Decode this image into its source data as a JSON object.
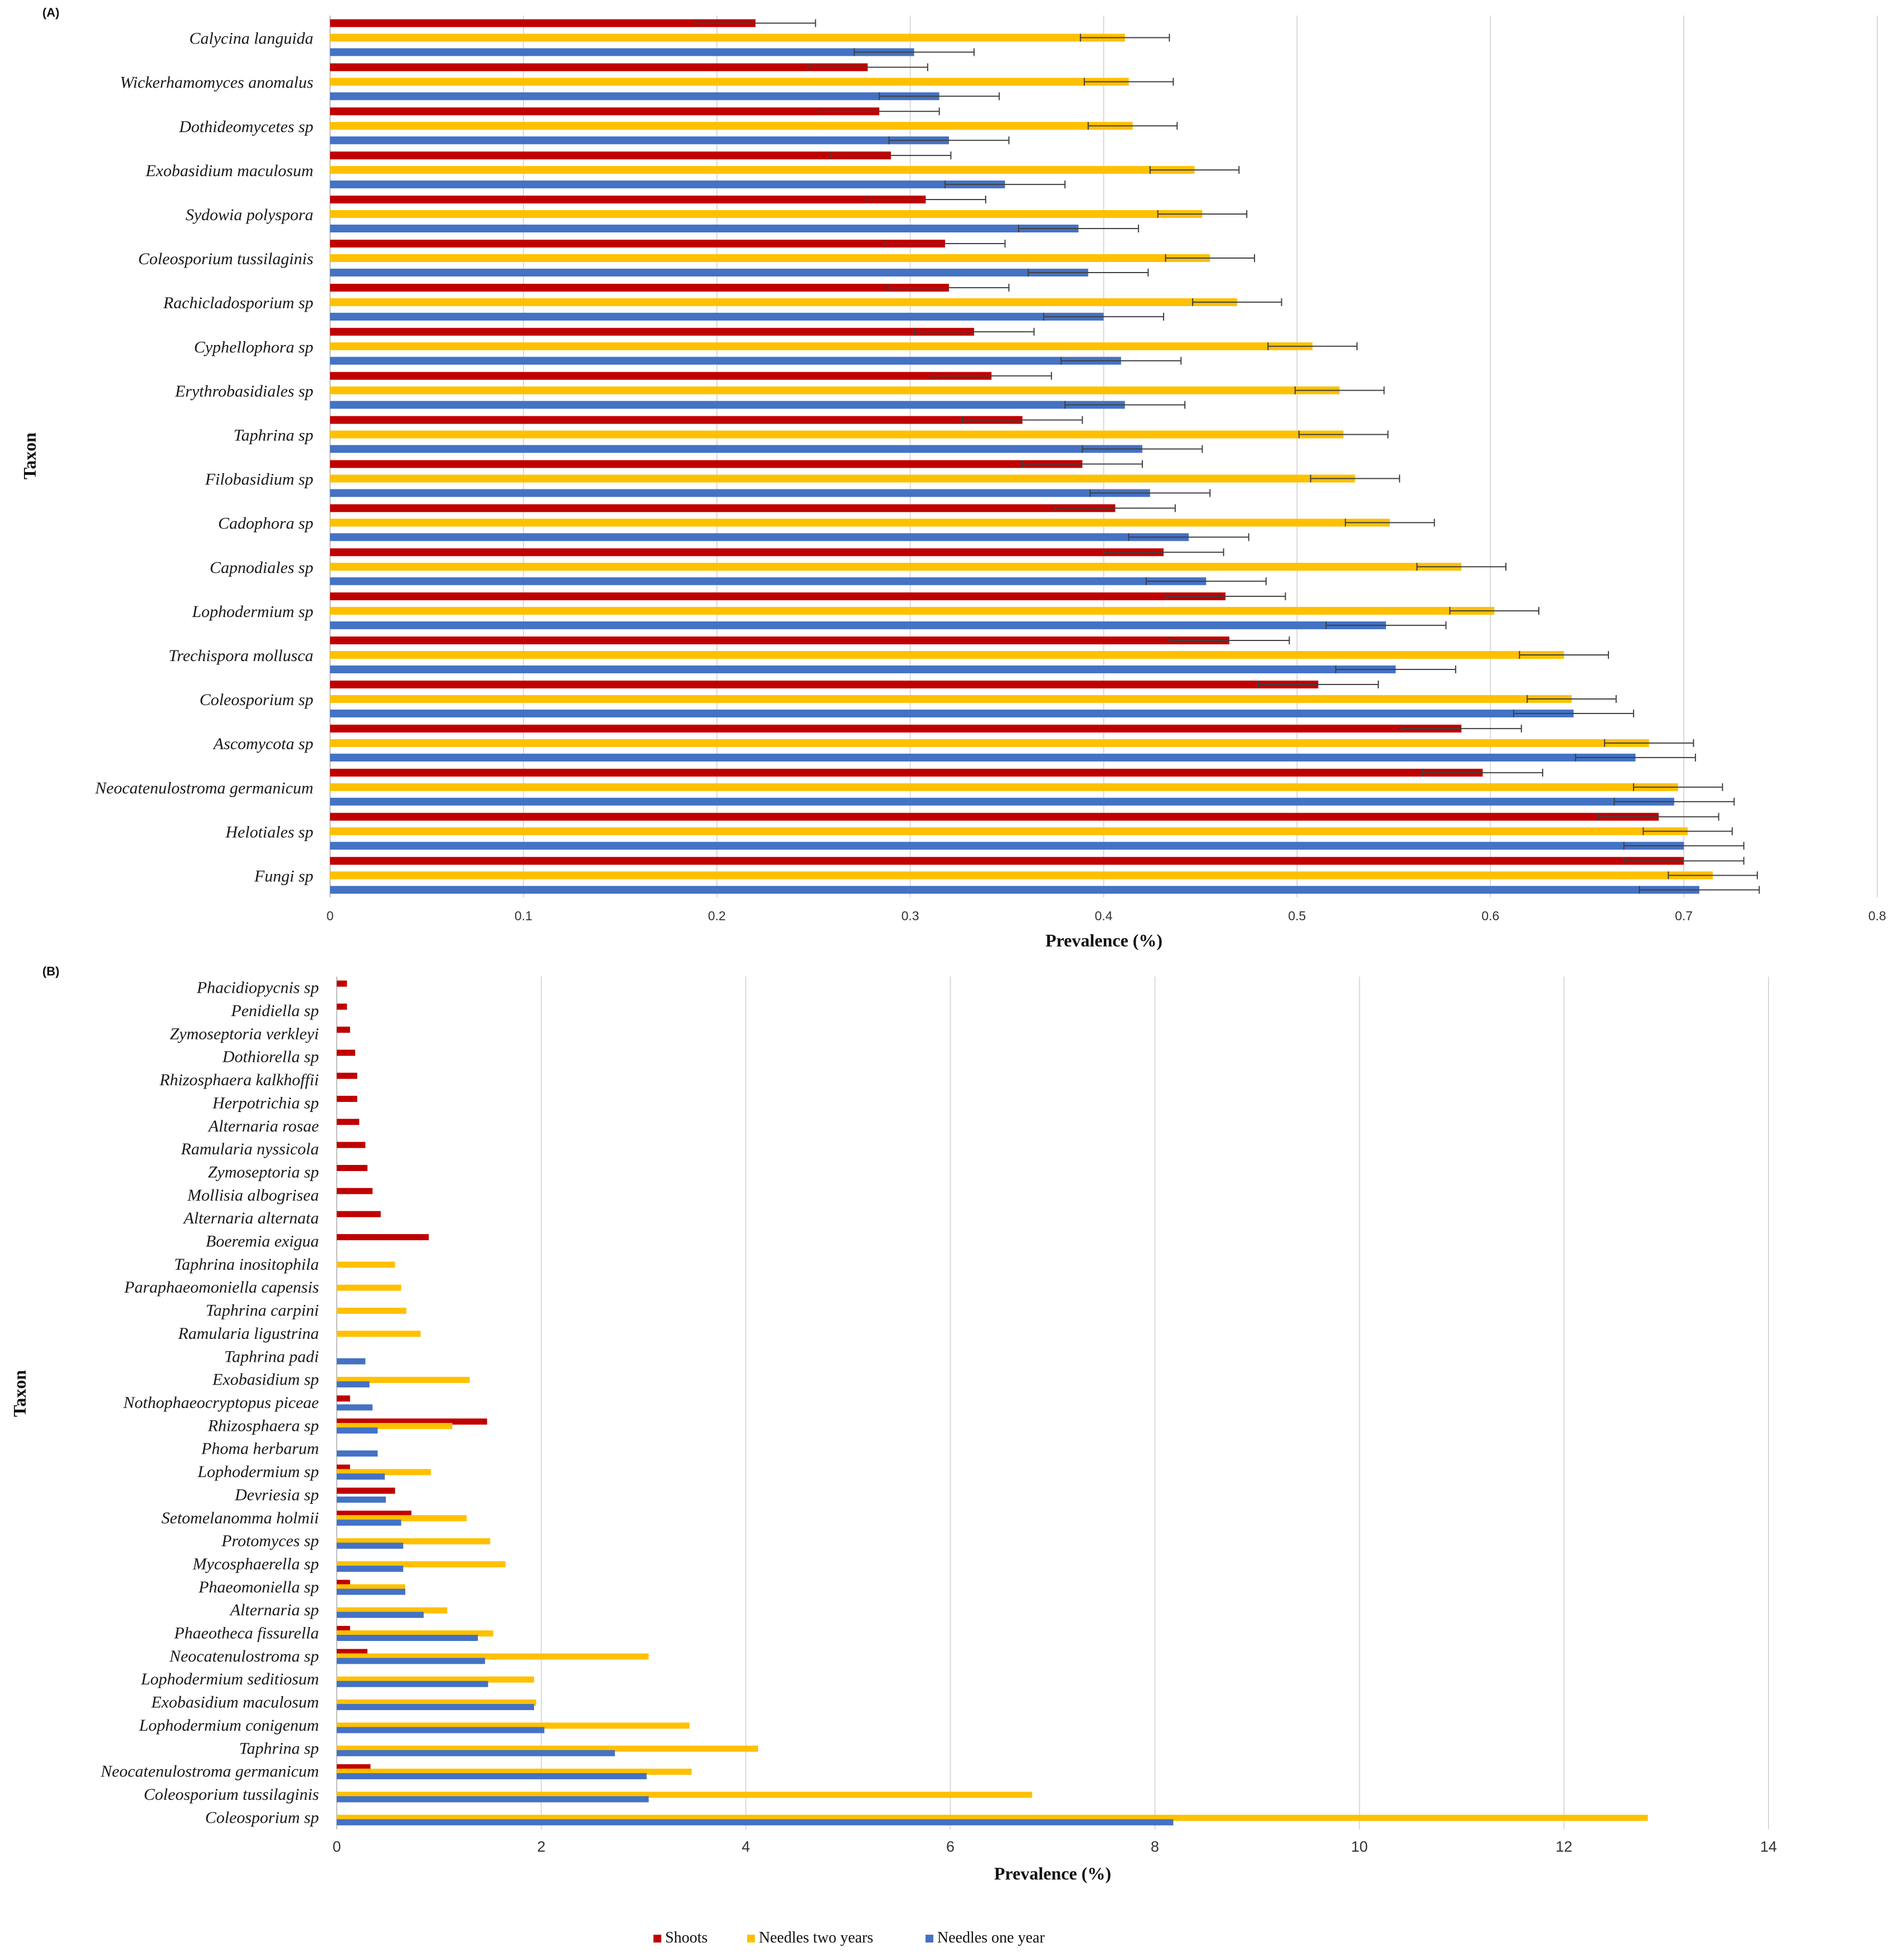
{
  "colors": {
    "shoots": "#c00000",
    "needles_two_years": "#ffc000",
    "needles_one_year": "#4472c4",
    "grid": "#d9d9d9",
    "errorbar": "#404040"
  },
  "legend": {
    "shoots": "Shoots",
    "needles_two_years": "Needles two years",
    "needles_one_year": "Needles one year"
  },
  "chart_data": [
    {
      "panel": "(A)",
      "type": "bar",
      "orientation": "horizontal",
      "xlabel": "Prevalence (%)",
      "ylabel": "Taxon",
      "xlim": [
        0,
        0.8
      ],
      "xticks": [
        "0",
        "0.1",
        "0.2",
        "0.3",
        "0.4",
        "0.5",
        "0.6",
        "0.7",
        "0.8"
      ],
      "grid": true,
      "error_bars": true,
      "categories": [
        "Calycina languida",
        "Wickerhamomyces anomalus",
        "Dothideomycetes sp",
        "Exobasidium maculosum",
        "Sydowia polyspora",
        "Coleosporium tussilaginis",
        "Rachicladosporium sp",
        "Cyphellophora sp",
        "Erythrobasidiales sp",
        "Taphrina sp",
        "Filobasidium sp",
        "Cadophora sp",
        "Capnodiales sp",
        "Lophodermium sp",
        "Trechispora mollusca",
        "Coleosporium sp",
        "Ascomycota sp",
        "Neocatenulostroma germanicum",
        "Helotiales sp",
        "Fungi sp"
      ],
      "series": [
        {
          "name": "Shoots",
          "values": [
            0.22,
            0.278,
            0.284,
            0.29,
            0.308,
            0.318,
            0.32,
            0.333,
            0.342,
            0.358,
            0.389,
            0.406,
            0.431,
            0.463,
            0.465,
            0.511,
            0.585,
            0.596,
            0.687,
            0.7
          ],
          "errors": [
            0.031,
            0.031,
            0.031,
            0.031,
            0.031,
            0.031,
            0.031,
            0.031,
            0.031,
            0.031,
            0.031,
            0.031,
            0.031,
            0.031,
            0.031,
            0.031,
            0.031,
            0.031,
            0.031,
            0.031
          ]
        },
        {
          "name": "Needles two years",
          "values": [
            0.411,
            0.413,
            0.415,
            0.447,
            0.451,
            0.455,
            0.469,
            0.508,
            0.522,
            0.524,
            0.53,
            0.548,
            0.585,
            0.602,
            0.638,
            0.642,
            0.682,
            0.697,
            0.702,
            0.715
          ],
          "errors": [
            0.023,
            0.023,
            0.023,
            0.023,
            0.023,
            0.023,
            0.023,
            0.023,
            0.023,
            0.023,
            0.023,
            0.023,
            0.023,
            0.023,
            0.023,
            0.023,
            0.023,
            0.023,
            0.023,
            0.023
          ]
        },
        {
          "name": "Needles one year",
          "values": [
            0.302,
            0.315,
            0.32,
            0.349,
            0.387,
            0.392,
            0.4,
            0.409,
            0.411,
            0.42,
            0.424,
            0.444,
            0.453,
            0.546,
            0.551,
            0.643,
            0.675,
            0.695,
            0.7,
            0.708
          ],
          "errors": [
            0.031,
            0.031,
            0.031,
            0.031,
            0.031,
            0.031,
            0.031,
            0.031,
            0.031,
            0.031,
            0.031,
            0.031,
            0.031,
            0.031,
            0.031,
            0.031,
            0.031,
            0.031,
            0.031,
            0.031
          ]
        }
      ]
    },
    {
      "panel": "(B)",
      "type": "bar",
      "orientation": "horizontal",
      "xlabel": "Prevalence (%)",
      "ylabel": "Taxon",
      "xlim": [
        0,
        14
      ],
      "xticks": [
        "0",
        "2",
        "4",
        "6",
        "8",
        "10",
        "12",
        "14"
      ],
      "grid": true,
      "error_bars": false,
      "categories": [
        "Phacidiopycnis sp",
        "Penidiella sp",
        "Zymoseptoria verkleyi",
        "Dothiorella sp",
        "Rhizosphaera kalkhoffii",
        "Herpotrichia sp",
        "Alternaria rosae",
        "Ramularia nyssicola",
        "Zymoseptoria sp",
        "Mollisia albogrisea",
        "Alternaria alternata",
        "Boeremia exigua",
        "Taphrina inositophila",
        "Paraphaeomoniella capensis",
        "Taphrina carpini",
        "Ramularia ligustrina",
        "Taphrina padi",
        "Exobasidium sp",
        "Nothophaeocryptopus piceae",
        "Rhizosphaera sp",
        "Phoma herbarum",
        "Lophodermium sp",
        "Devriesia sp",
        "Setomelanomma holmii",
        "Protomyces sp",
        "Mycosphaerella sp",
        "Phaeomoniella sp",
        "Alternaria sp",
        "Phaeotheca fissurella",
        "Neocatenulostroma sp",
        "Lophodermium seditiosum",
        "Exobasidium maculosum",
        "Lophodermium conigenum",
        "Taphrina sp",
        "Neocatenulostroma germanicum",
        "Coleosporium tussilaginis",
        "Coleosporium sp"
      ],
      "series": [
        {
          "name": "Shoots",
          "values": [
            0.1,
            0.1,
            0.13,
            0.18,
            0.2,
            0.2,
            0.22,
            0.28,
            0.3,
            0.35,
            0.43,
            0.9,
            0,
            0,
            0,
            0,
            0,
            0,
            0.13,
            1.47,
            0,
            0.13,
            0.57,
            0.73,
            0,
            0,
            0.13,
            0,
            0.13,
            0.3,
            0,
            0,
            0,
            0,
            0.33,
            0,
            0
          ]
        },
        {
          "name": "Needles two years",
          "values": [
            0,
            0,
            0,
            0,
            0,
            0,
            0,
            0,
            0,
            0,
            0,
            0,
            0.57,
            0.63,
            0.68,
            0.82,
            0,
            1.3,
            0,
            1.13,
            0,
            0.92,
            0,
            1.27,
            1.5,
            1.65,
            0.67,
            1.08,
            1.53,
            3.05,
            1.93,
            1.95,
            3.45,
            4.12,
            3.47,
            6.8,
            12.82
          ]
        },
        {
          "name": "Needles one year",
          "values": [
            0,
            0,
            0,
            0,
            0,
            0,
            0,
            0,
            0,
            0,
            0,
            0,
            0,
            0,
            0,
            0,
            0.28,
            0.32,
            0.35,
            0.4,
            0.4,
            0.47,
            0.48,
            0.63,
            0.65,
            0.65,
            0.67,
            0.85,
            1.38,
            1.45,
            1.48,
            1.93,
            2.03,
            2.72,
            3.03,
            3.05,
            8.18
          ]
        }
      ]
    }
  ]
}
